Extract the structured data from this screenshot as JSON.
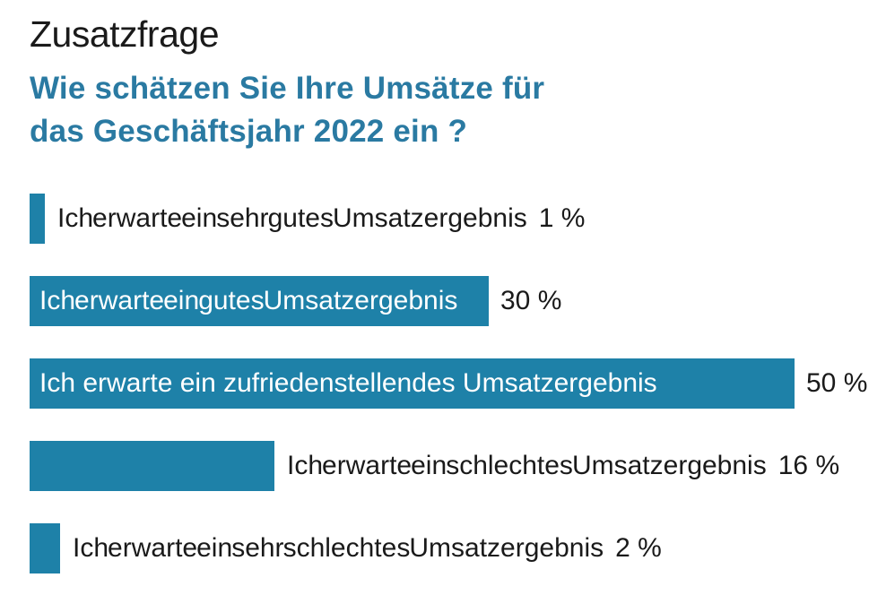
{
  "header": {
    "title": "Zusatzfrage",
    "subtitle_line1": "Wie schätzen Sie Ihre Umsätze für",
    "subtitle_line2": "das Geschäftsjahr 2022 ein ?"
  },
  "chart_data": {
    "type": "bar",
    "orientation": "horizontal",
    "title": "Zusatzfrage",
    "question": "Wie schätzen Sie Ihre Umsätze für das Geschäftsjahr 2022 ein ?",
    "categories": [
      "Ich erwarte ein sehr gutes Umsatzergebnis",
      "Ich erwarte ein gutes Umsatzergebnis",
      "Ich erwarte ein zufriedenstellendes Umsatzergebnis",
      "Ich erwarte ein schlechtes Umsatzergebnis",
      "Ich erwarte ein sehr schlechtes Umsatzergebnis"
    ],
    "values": [
      1,
      30,
      50,
      16,
      2
    ],
    "value_labels": [
      "1 %",
      "30 %",
      "50 %",
      "16 %",
      "2 %"
    ],
    "unit": "%",
    "xlim": [
      0,
      50
    ],
    "label_placement": [
      "outside",
      "inside",
      "inside",
      "outside",
      "outside"
    ],
    "legend": "none",
    "grid": false,
    "colors": {
      "bar": "#1E81A8",
      "title_text": "#1A1A1A",
      "subtitle_text": "#2A7AA2",
      "outside_label_text": "#1A1A1A",
      "inside_label_text": "#FFFFFF",
      "value_text": "#1A1A1A",
      "background": "#FFFFFF"
    }
  }
}
